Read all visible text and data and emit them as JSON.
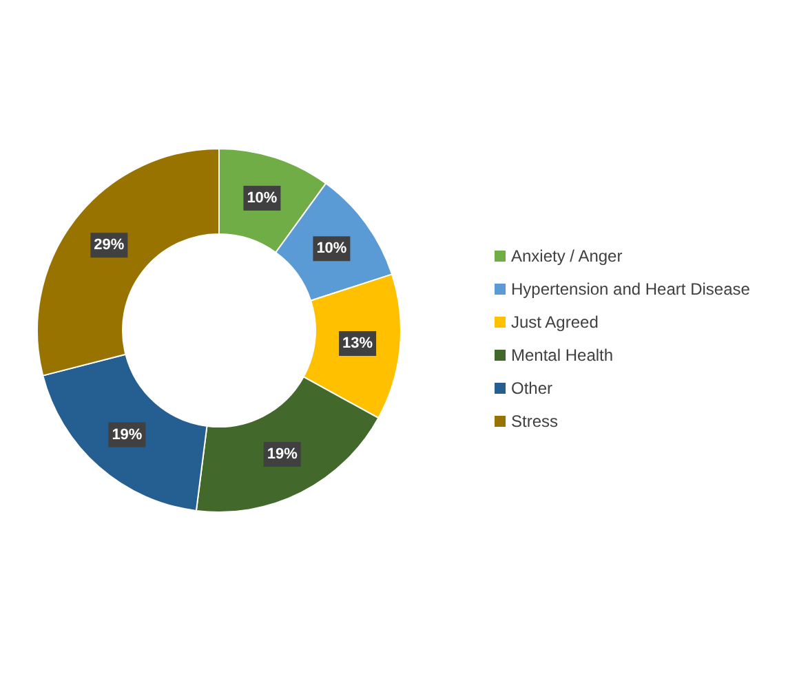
{
  "chart_data": {
    "type": "donut",
    "categories": [
      "Anxiety / Anger",
      "Hypertension and Heart Disease",
      "Just Agreed",
      "Mental Health",
      "Other",
      "Stress"
    ],
    "values": [
      10,
      10,
      13,
      19,
      19,
      29
    ],
    "colors": [
      "#70ad47",
      "#5b9bd5",
      "#ffc000",
      "#43682b",
      "#255e91",
      "#997300"
    ],
    "value_labels": [
      "10%",
      "10%",
      "13%",
      "19%",
      "19%",
      "29%"
    ],
    "legend": "right"
  }
}
